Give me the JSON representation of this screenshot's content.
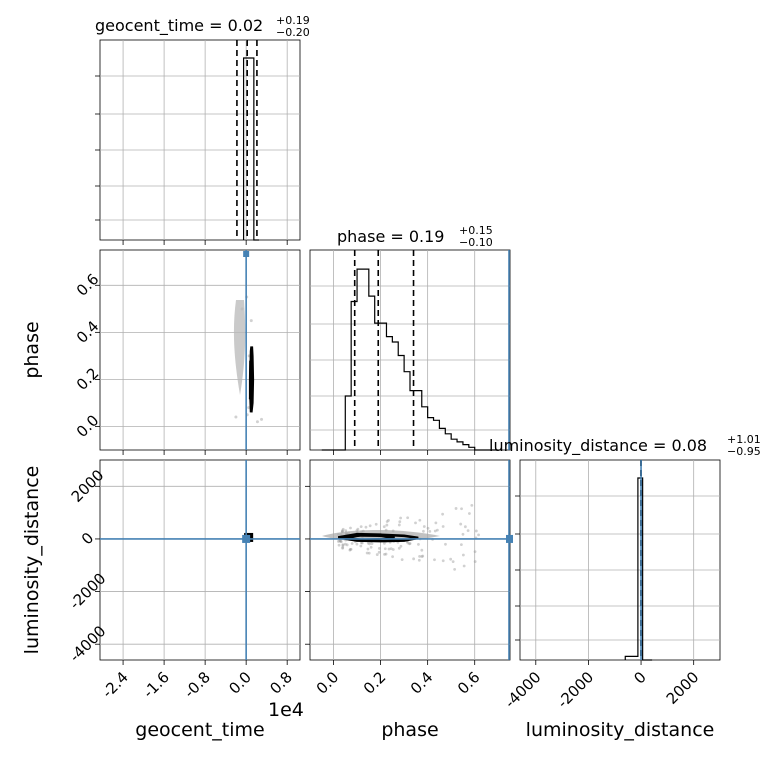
{
  "chart_data": {
    "type": "corner",
    "parameters": [
      "geocent_time",
      "phase",
      "luminosity_distance"
    ],
    "axis_labels": {
      "geocent_time": "geocent_time",
      "phase": "phase",
      "luminosity_distance": "luminosity_distance"
    },
    "offset_text": "1e4",
    "ranges": {
      "geocent_time": [
        -2.85,
        1.05
      ],
      "phase": [
        -0.1,
        0.75
      ],
      "luminosity_distance": [
        -4600,
        3000
      ]
    },
    "ticks": {
      "geocent_time": [
        "-2.4",
        "-1.6",
        "-0.8",
        "0.0",
        "0.8"
      ],
      "geocent_time_values": [
        -2.4,
        -1.6,
        -0.8,
        0.0,
        0.8
      ],
      "phase_x": [
        "0.0",
        "0.2",
        "0.4",
        "0.6"
      ],
      "phase_x_values": [
        0.0,
        0.2,
        0.4,
        0.6
      ],
      "phase_y": [
        "0.0",
        "0.2",
        "0.4",
        "0.6"
      ],
      "phase_y_values": [
        0.0,
        0.2,
        0.4,
        0.6
      ],
      "luminosity_distance": [
        "-4000",
        "-2000",
        "0",
        "2000"
      ],
      "luminosity_distance_values": [
        -4000,
        -2000,
        0,
        2000
      ]
    },
    "titles": {
      "geocent_time": {
        "label": "geocent_time = 0.02",
        "plus": "+0.19",
        "minus": "−0.20"
      },
      "phase": {
        "label": "phase = 0.19",
        "plus": "+0.15",
        "minus": "−0.10"
      },
      "luminosity_distance": {
        "label": "luminosity_distance = 0.08",
        "plus": "+1.01",
        "minus": "−0.95"
      }
    },
    "quantiles": {
      "geocent_time": [
        -0.18,
        0.02,
        0.21
      ],
      "phase": [
        0.09,
        0.19,
        0.34
      ],
      "luminosity_distance": [
        -0.87,
        0.08,
        1.09
      ]
    },
    "truths": {
      "geocent_time": 0.0,
      "phase": 0.75,
      "luminosity_distance": 0.0
    },
    "histograms": {
      "geocent_time": {
        "bins": [
          -0.05,
          0.05,
          0.15,
          0.25
        ],
        "counts": [
          1.0,
          1.0,
          0.0
        ]
      },
      "phase": {
        "bins": [
          -0.05,
          0.0,
          0.05,
          0.075,
          0.1,
          0.125,
          0.15,
          0.175,
          0.2,
          0.225,
          0.25,
          0.275,
          0.3,
          0.325,
          0.35,
          0.375,
          0.4,
          0.425,
          0.45,
          0.475,
          0.5,
          0.525,
          0.55,
          0.575,
          0.6,
          0.625,
          0.65,
          0.7
        ],
        "counts": [
          0.0,
          0.0,
          0.2,
          0.55,
          0.67,
          0.67,
          0.57,
          0.47,
          0.47,
          0.42,
          0.4,
          0.35,
          0.29,
          0.22,
          0.22,
          0.16,
          0.12,
          0.11,
          0.08,
          0.06,
          0.04,
          0.03,
          0.02,
          0.01,
          0.0,
          0.0,
          0.0
        ]
      },
      "luminosity_distance": {
        "bins": [
          -600,
          -120,
          60,
          420
        ],
        "counts": [
          0.02,
          1.0,
          0.0
        ]
      }
    },
    "contours": {
      "geocent_time_vs_phase": [
        {
          "x": [
            0.04,
            0.05,
            0.04,
            0.03,
            0.02,
            0.01,
            0.01,
            0.02,
            0.04
          ],
          "y": [
            0.1,
            0.2,
            0.3,
            0.34,
            0.32,
            0.22,
            0.12,
            0.06,
            0.1
          ]
        },
        {
          "x": [
            0.03,
            0.04,
            0.03,
            0.02,
            0.015,
            0.015,
            0.03
          ],
          "y": [
            0.12,
            0.2,
            0.27,
            0.28,
            0.2,
            0.12,
            0.12
          ]
        }
      ],
      "phase_vs_luminosity_distance": [
        {
          "x": [
            0.02,
            0.1,
            0.2,
            0.3,
            0.36,
            0.3,
            0.2,
            0.1,
            0.02
          ],
          "y": [
            60,
            180,
            160,
            120,
            40,
            -60,
            -80,
            -60,
            60
          ]
        },
        {
          "x": [
            0.05,
            0.12,
            0.2,
            0.26,
            0.2,
            0.12,
            0.05
          ],
          "y": [
            60,
            120,
            110,
            60,
            0,
            -20,
            60
          ]
        }
      ]
    }
  }
}
